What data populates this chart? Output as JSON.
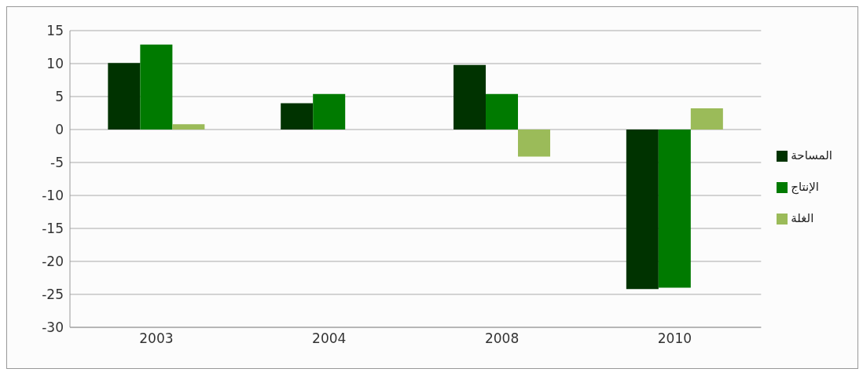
{
  "chart_data": {
    "type": "bar",
    "categories": [
      "2003",
      "2004",
      "2008",
      "2010"
    ],
    "series": [
      {
        "name": "المساحة",
        "color": "#003300",
        "values": [
          10.1,
          4.0,
          9.8,
          -24.2
        ]
      },
      {
        "name": "الإنتاج",
        "color": "#007a00",
        "values": [
          12.9,
          5.4,
          5.4,
          -24.0
        ]
      },
      {
        "name": "الغلة",
        "color": "#9bbb59",
        "values": [
          0.8,
          null,
          -4.1,
          3.2
        ]
      }
    ],
    "ylim": [
      -30,
      15
    ],
    "yticks": [
      -30,
      -25,
      -20,
      -15,
      -10,
      -5,
      0,
      5,
      10,
      15
    ],
    "grid": "y",
    "legend": "right"
  }
}
